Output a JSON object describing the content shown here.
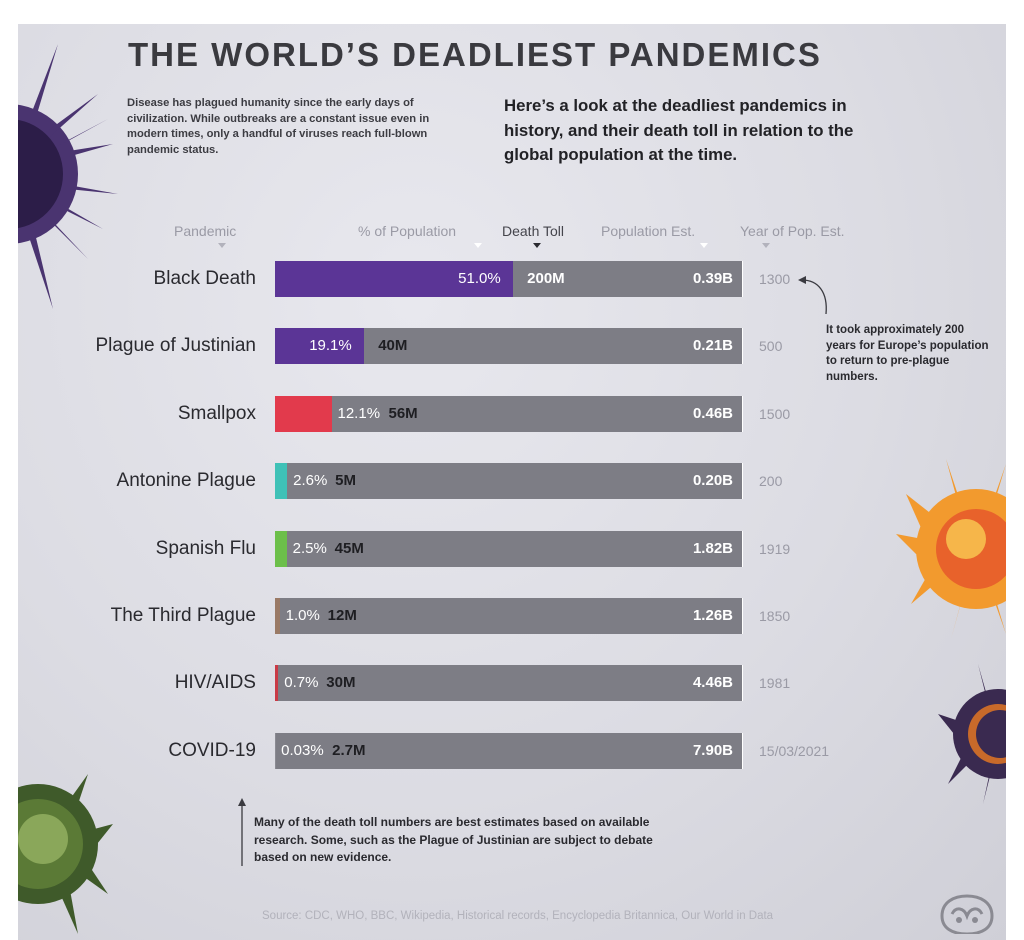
{
  "header": {
    "title": "THE WORLD’S DEADLIEST PANDEMICS",
    "intro_left": "Disease has plagued humanity since the early days of civilization. While outbreaks are a constant issue even in modern times, only a handful of viruses reach full-blown pandemic status.",
    "intro_right": "Here’s a look at the deadliest pandemics in history, and their death toll in relation to the global population at the time."
  },
  "columns": {
    "pandemic": "Pandemic",
    "pct_population": "% of Population",
    "death_toll": "Death Toll",
    "population_est": "Population Est.",
    "year_est": "Year of Pop. Est."
  },
  "notes": {
    "black_death": "It took approximately 200 years for Europe’s population to return to pre-plague numbers.",
    "estimates": "Many of the death toll numbers are best estimates based on available research. Some, such as the Plague of Justinian are subject to debate based on new evidence."
  },
  "footer": {
    "source": "Source: CDC, WHO, BBC, Wikipedia, Historical records, Encyclopedia Britannica, Our World in Data",
    "logo_icon": "visual-capitalist-logo-icon"
  },
  "chart_data": {
    "type": "bar",
    "orientation": "horizontal",
    "title": "THE WORLD’S DEADLIEST PANDEMICS",
    "categories": [
      "Black Death",
      "Plague of Justinian",
      "Smallpox",
      "Antonine Plague",
      "Spanish Flu",
      "The Third Plague",
      "HIV/AIDS",
      "COVID-19"
    ],
    "values": [
      51.0,
      19.1,
      12.1,
      2.6,
      2.5,
      1.0,
      0.7,
      0.03
    ],
    "xlim": [
      0,
      100
    ],
    "pct_labels": [
      "51.0%",
      "19.1%",
      "12.1%",
      "2.6%",
      "2.5%",
      "1.0%",
      "0.7%",
      "0.03%"
    ],
    "death_toll": [
      "200M",
      "40M",
      "56M",
      "5M",
      "45M",
      "12M",
      "30M",
      "2.7M"
    ],
    "population_est": [
      "0.39B",
      "0.21B",
      "0.46B",
      "0.20B",
      "1.82B",
      "1.26B",
      "4.46B",
      "7.90B"
    ],
    "year_of_pop_est": [
      "1300",
      "500",
      "1500",
      "200",
      "1919",
      "1850",
      "1981",
      "15/03/2021"
    ],
    "colors": [
      "#5b3596",
      "#5b3596",
      "#e23a4c",
      "#3fc1b7",
      "#6cbf4a",
      "#9a7a66",
      "#c93a46",
      "#8a8a92"
    ],
    "track_color": "#7d7d85",
    "grid": false,
    "legend": "none"
  }
}
